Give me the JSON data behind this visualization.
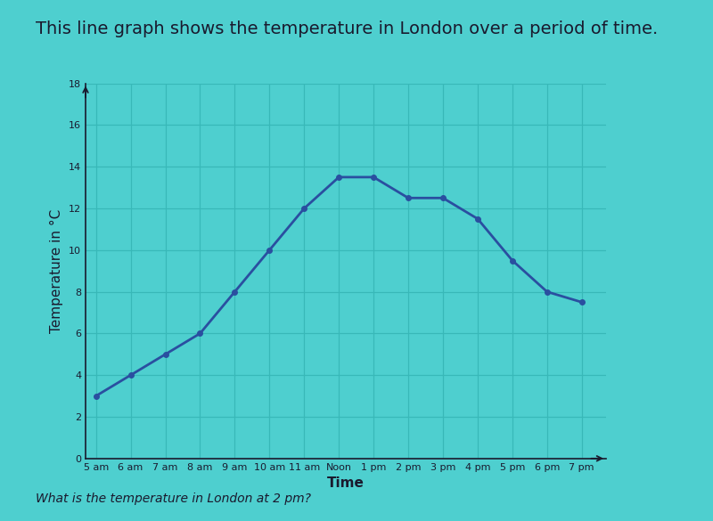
{
  "title": "This line graph shows the temperature in London over a period of time.",
  "subtitle": "What is the temperature in London at 2 pm?",
  "xlabel": "Time",
  "ylabel": "Temperature in °C",
  "x_labels": [
    "5 am",
    "6 am",
    "7 am",
    "8 am",
    "9 am",
    "10 am",
    "11 am",
    "Noon",
    "1 pm",
    "2 pm",
    "3 pm",
    "4 pm",
    "5 pm",
    "6 pm",
    "7 pm"
  ],
  "y_values": [
    3,
    4,
    5,
    6,
    8,
    10,
    12,
    13.5,
    13.5,
    12.5,
    12.5,
    11.5,
    9.5,
    8,
    7.5
  ],
  "line_color": "#2a4fa0",
  "marker_color": "#2a4fa0",
  "bg_color": "#4ecfcf",
  "plot_bg_color": "#4ecfcf",
  "grid_color": "#38b8b8",
  "title_color": "#1a1a2e",
  "axis_color": "#1a1a2e",
  "ylim": [
    0,
    18
  ],
  "xlim_left": -0.3,
  "xlim_right": 14.7,
  "ytick_step": 2,
  "title_fontsize": 14,
  "label_fontsize": 11,
  "tick_fontsize": 8,
  "subtitle_fontsize": 10
}
